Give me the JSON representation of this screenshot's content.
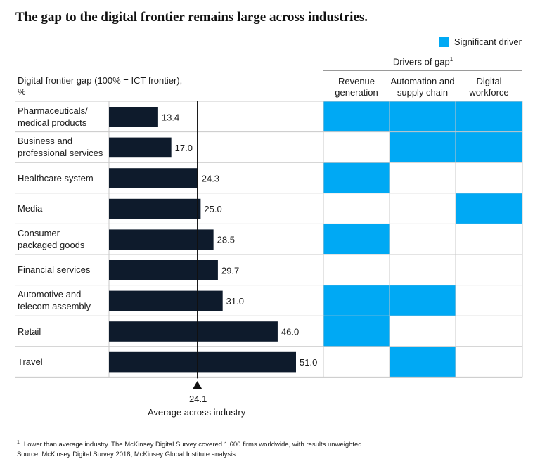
{
  "title": "The gap to the digital frontier remains large across industries.",
  "legend": {
    "label": "Significant driver",
    "color": "#00a9f4"
  },
  "drivers_header": "Drivers of gap",
  "drivers_header_sup": "1",
  "axis_title": "Digital frontier gap (100% = ICT frontier),\n%",
  "columns": [
    "Revenue\ngeneration",
    "Automation and\nsupply chain",
    "Digital\nworkforce"
  ],
  "average": {
    "value": "24.1",
    "label": "Average across industry"
  },
  "footnote_mark": "1",
  "footnote": "Lower than average industry. The McKinsey Digital Survey covered 1,600 firms worldwide, with results unweighted.",
  "source": "Source: McKinsey Digital Survey 2018; McKinsey Global Institute analysis",
  "colors": {
    "bar": "#0e1b2c",
    "driver": "#00a9f4",
    "grid": "#c8c8c8"
  },
  "chart_data": {
    "type": "bar",
    "orientation": "horizontal",
    "categories": [
      "Pharmaceuticals/\nmedical products",
      "Business and\nprofessional services",
      "Healthcare system",
      "Media",
      "Consumer\npackaged goods",
      "Financial services",
      "Automotive and\ntelecom assembly",
      "Retail",
      "Travel"
    ],
    "values": [
      13.4,
      17.0,
      24.3,
      25.0,
      28.5,
      29.7,
      31.0,
      46.0,
      51.0
    ],
    "value_labels": [
      "13.4",
      "17.0",
      "24.3",
      "25.0",
      "28.5",
      "29.7",
      "31.0",
      "46.0",
      "51.0"
    ],
    "average": 24.1,
    "xlim": [
      0,
      51
    ],
    "drivers": {
      "columns": [
        "Revenue generation",
        "Automation and supply chain",
        "Digital workforce"
      ],
      "matrix": [
        [
          true,
          true,
          true
        ],
        [
          false,
          true,
          true
        ],
        [
          true,
          false,
          false
        ],
        [
          false,
          false,
          true
        ],
        [
          true,
          false,
          false
        ],
        [
          false,
          false,
          false
        ],
        [
          true,
          true,
          false
        ],
        [
          true,
          false,
          false
        ],
        [
          false,
          true,
          false
        ]
      ]
    }
  }
}
